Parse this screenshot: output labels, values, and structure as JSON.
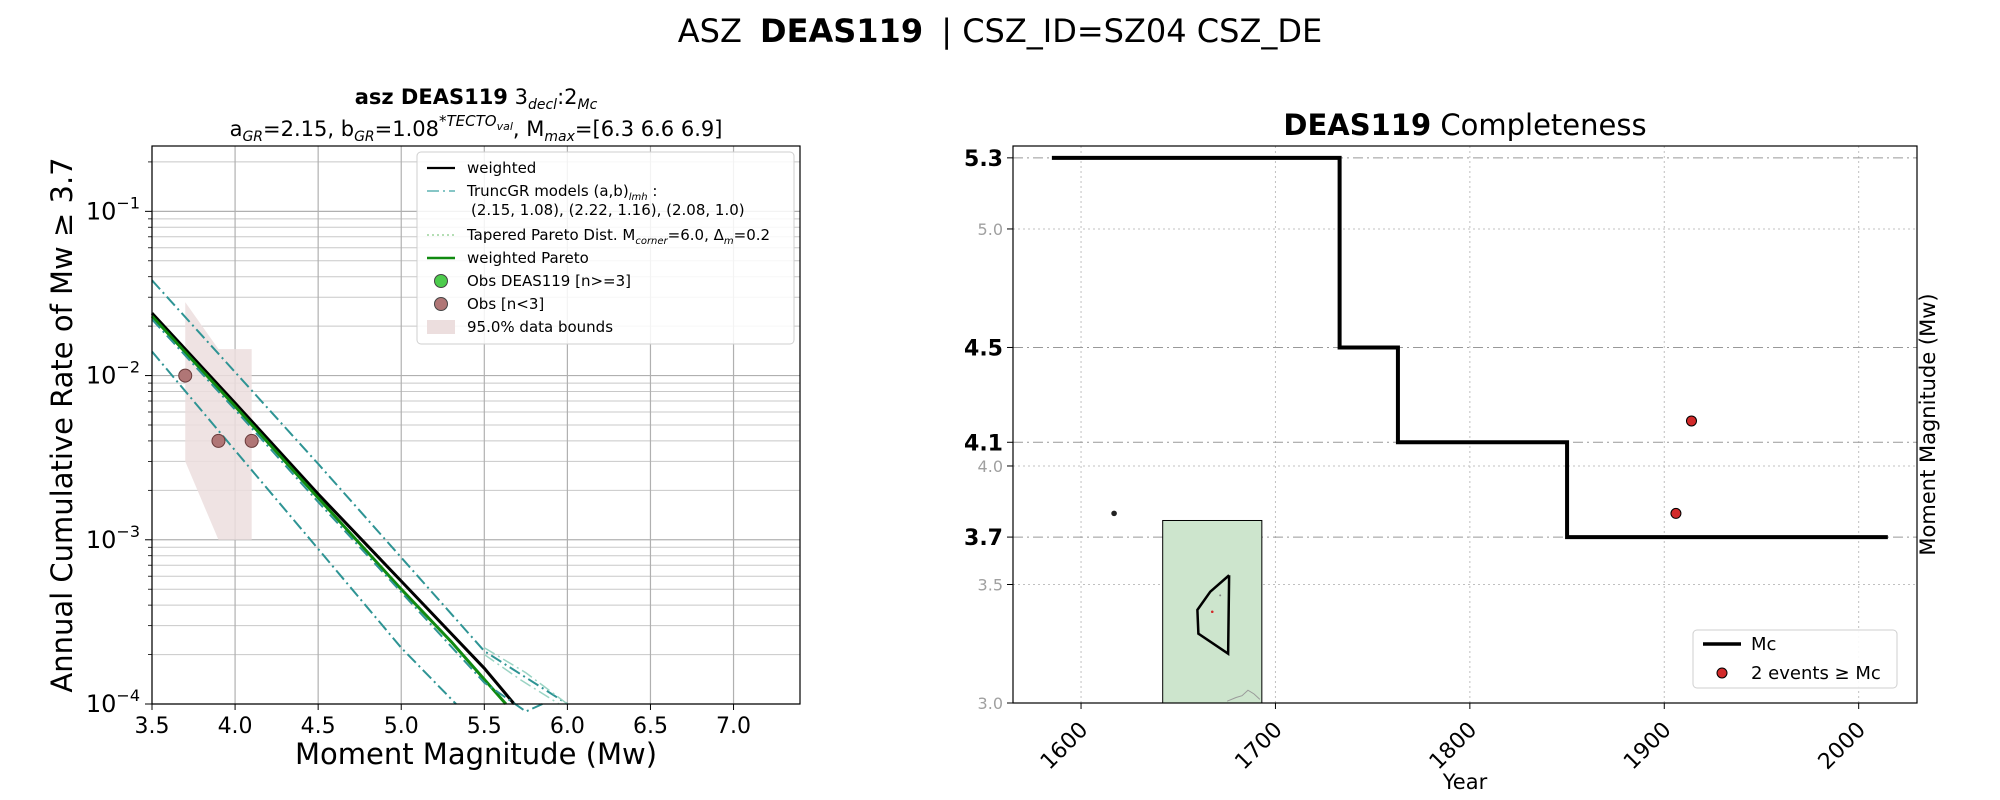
{
  "suptitle": {
    "prefix": "ASZ",
    "bold": "DEAS119",
    "suffix": "| CSZ_ID=SZ04 CSZ_DE"
  },
  "chart_data": [
    {
      "type": "line",
      "title_line1": {
        "bold": "asz DEAS119",
        "rest_main": "3",
        "rest_sub1": "decl",
        "rest_mid": ":2",
        "rest_sub2": "Mc"
      },
      "title_line2": {
        "a_main": "a",
        "a_sub": "GR",
        "a_val": "=2.15,  b",
        "b_sub": "GR",
        "b_val": "=1.08",
        "b_sup": "*TECTO",
        "b_sup_sub": "val",
        "m_part": ", M",
        "m_sub": "max",
        "m_val": "=[6.3 6.6 6.9]"
      },
      "xlabel": "Moment Magnitude (Mw)",
      "ylabel": "Annual Cumulative Rate of Mw ≥ 3.7",
      "xlim": [
        3.5,
        7.4
      ],
      "ylim": [
        0.0001,
        0.25
      ],
      "yscale": "log",
      "xticks": [
        3.5,
        4.0,
        4.5,
        5.0,
        5.5,
        6.0,
        6.5,
        7.0
      ],
      "xtick_labels": [
        "3.5",
        "4.0",
        "4.5",
        "5.0",
        "5.5",
        "6.0",
        "6.5",
        "7.0"
      ],
      "yticks": [
        0.0001,
        0.001,
        0.01,
        0.1
      ],
      "ytick_labels": [
        {
          "base": "10",
          "exp": "−4"
        },
        {
          "base": "10",
          "exp": "−3"
        },
        {
          "base": "10",
          "exp": "−2"
        },
        {
          "base": "10",
          "exp": "−1"
        }
      ],
      "grid": true,
      "legend_position": "top-right",
      "legend": [
        {
          "kind": "line",
          "color": "#000000",
          "dash": "solid",
          "width": 2.2,
          "label": "weighted"
        },
        {
          "kind": "line",
          "color": "#5fb3b3",
          "dash": "dashdot",
          "width": 1.6,
          "label_main": "TruncGR models (a,b)",
          "label_sub": "lmh",
          "label_end": " :",
          "label2": "(2.15, 1.08), (2.22, 1.16), (2.08, 1.0)"
        },
        {
          "kind": "line",
          "color": "#9bd49b",
          "dash": "dotted",
          "width": 1.4,
          "label_main": "Tapered Pareto Dist. M",
          "label_sub": "corner",
          "label_mid": "=6.0, Δ",
          "label_sub2": "m",
          "label_end": "=0.2"
        },
        {
          "kind": "line",
          "color": "#108a10",
          "dash": "solid",
          "width": 2.6,
          "label": "weighted Pareto"
        },
        {
          "kind": "marker",
          "color": "#4dcc4d",
          "label": "Obs DEAS119 [n>=3]"
        },
        {
          "kind": "marker",
          "color": "#b07676",
          "label": "Obs [n<3]"
        },
        {
          "kind": "patch",
          "color": "#ecdede",
          "label": "95.0% data bounds"
        }
      ],
      "series": [
        {
          "name": "weighted",
          "color": "#000000",
          "width": 3,
          "dash": "solid",
          "x": [
            3.5,
            4.0,
            4.5,
            5.0,
            5.5,
            5.68
          ],
          "y": [
            0.024,
            0.0068,
            0.0019,
            0.00056,
            0.000165,
            0.0001
          ]
        },
        {
          "name": "weighted Pareto",
          "color": "#108a10",
          "width": 3,
          "dash": "solid",
          "x": [
            3.5,
            4.0,
            4.5,
            5.0,
            5.3,
            5.63
          ],
          "y": [
            0.023,
            0.0065,
            0.0018,
            0.0005,
            0.00024,
            0.0001
          ]
        },
        {
          "name": "TruncGR high",
          "color": "#2e9494",
          "width": 2,
          "dash": "dashdot",
          "x": [
            3.5,
            4.0,
            4.5,
            5.0,
            5.5,
            5.85,
            6.0
          ],
          "y": [
            0.038,
            0.0105,
            0.0029,
            0.00078,
            0.00021,
            0.000125,
            0.0001
          ]
        },
        {
          "name": "TruncGR mid",
          "color": "#2e9494",
          "width": 2,
          "dash": "dashdot",
          "x": [
            3.5,
            4.0,
            4.5,
            5.0,
            5.5,
            5.75,
            5.85
          ],
          "y": [
            0.022,
            0.0062,
            0.0017,
            0.00048,
            0.000135,
            9e-05,
            0.0001
          ]
        },
        {
          "name": "TruncGR low",
          "color": "#2e9494",
          "width": 2,
          "dash": "dashdot",
          "x": [
            3.5,
            4.0,
            4.5,
            5.0,
            5.33
          ],
          "y": [
            0.014,
            0.0035,
            0.00088,
            0.00022,
            0.0001
          ]
        },
        {
          "name": "Tapered Pareto a",
          "color": "#9bd4c4",
          "width": 1.5,
          "dash": "dashdot",
          "x": [
            5.5,
            5.75,
            6.0
          ],
          "y": [
            0.00022,
            0.000155,
            0.0001
          ]
        },
        {
          "name": "Tapered Pareto b",
          "color": "#9bd4c4",
          "width": 1.5,
          "dash": "dashdot",
          "x": [
            5.5,
            5.72,
            5.95
          ],
          "y": [
            0.0002,
            0.00014,
            0.0001
          ]
        }
      ],
      "bounds_polygon": {
        "x": [
          3.7,
          3.7,
          3.9,
          4.1,
          4.1,
          3.9
        ],
        "y": [
          0.028,
          0.003,
          0.001,
          0.001,
          0.0145,
          0.0145
        ]
      },
      "points_obs": {
        "x": [
          3.7,
          3.9,
          4.1
        ],
        "y": [
          0.01,
          0.004,
          0.004
        ],
        "color": "#b07676"
      }
    },
    {
      "type": "line",
      "title": {
        "bold": "DEAS119",
        "rest": "Completeness"
      },
      "xlabel": "Year",
      "ylabel": "Moment Magnitude (Mw)",
      "xlim": [
        1565,
        2030
      ],
      "ylim": [
        3.0,
        5.35
      ],
      "xticks": [
        1600,
        1700,
        1800,
        1900,
        2000
      ],
      "xtick_labels": [
        "1600",
        "1700",
        "1800",
        "1900",
        "2000"
      ],
      "yticks_minor": [
        3.0,
        3.5,
        4.0,
        5.0
      ],
      "yticks_minor_labels": [
        "3.0",
        "3.5",
        "4.0",
        "5.0"
      ],
      "yticks_major": [
        3.7,
        4.1,
        4.5,
        5.3
      ],
      "yticks_major_labels": [
        "3.7",
        "4.1",
        "4.5",
        "5.3"
      ],
      "grid": true,
      "legend_position": "lower-right",
      "legend": [
        {
          "kind": "line",
          "color": "#000000",
          "label": "Mc"
        },
        {
          "kind": "marker",
          "color": "#d22a2a",
          "label": "2 events ≥ Mc"
        }
      ],
      "series": [
        {
          "name": "Mc",
          "color": "#000000",
          "x": [
            1585,
            1733,
            1733,
            1763,
            1763,
            1850,
            1850,
            2015
          ],
          "y": [
            5.3,
            5.3,
            4.5,
            4.5,
            4.1,
            4.1,
            3.7,
            3.7
          ]
        }
      ],
      "points_events": {
        "x": [
          1906,
          1914
        ],
        "y": [
          3.8,
          4.19
        ],
        "color": "#d22a2a"
      },
      "points_other": {
        "x": [
          1617
        ],
        "y": [
          3.8
        ],
        "color": "#222222"
      },
      "inset": {
        "x0": 1642,
        "x1": 1693,
        "y0": 3.0,
        "y1": 3.77,
        "color": "#cde5cd"
      }
    }
  ]
}
